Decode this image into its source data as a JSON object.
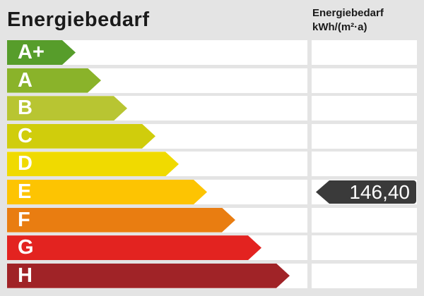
{
  "header": {
    "title": "Energiebedarf",
    "unit_line1": "Energiebedarf",
    "unit_line2": "kWh/(m²·a)"
  },
  "chart_data": {
    "type": "bar",
    "title": "Energiebedarf",
    "unit": "kWh/(m²·a)",
    "categories": [
      "A+",
      "A",
      "B",
      "C",
      "D",
      "E",
      "F",
      "G",
      "H"
    ],
    "bands": [
      {
        "label": "A+",
        "color": "#579d2b"
      },
      {
        "label": "A",
        "color": "#8ab32a"
      },
      {
        "label": "B",
        "color": "#b8c532"
      },
      {
        "label": "C",
        "color": "#d0cd0c"
      },
      {
        "label": "D",
        "color": "#f0da00"
      },
      {
        "label": "E",
        "color": "#fdc402"
      },
      {
        "label": "F",
        "color": "#e97d11"
      },
      {
        "label": "G",
        "color": "#e32320"
      },
      {
        "label": "H",
        "color": "#a02327"
      }
    ],
    "value": 146.4,
    "value_band": "E",
    "legend_position": "none",
    "grid": false
  },
  "value_marker": {
    "value": "146,40",
    "band": "E",
    "color": "#3a3a3a",
    "text_color": "#ffffff"
  },
  "colors": {
    "background": "#e4e4e4",
    "row_background": "#ffffff",
    "title_color": "#1a1a1a"
  }
}
